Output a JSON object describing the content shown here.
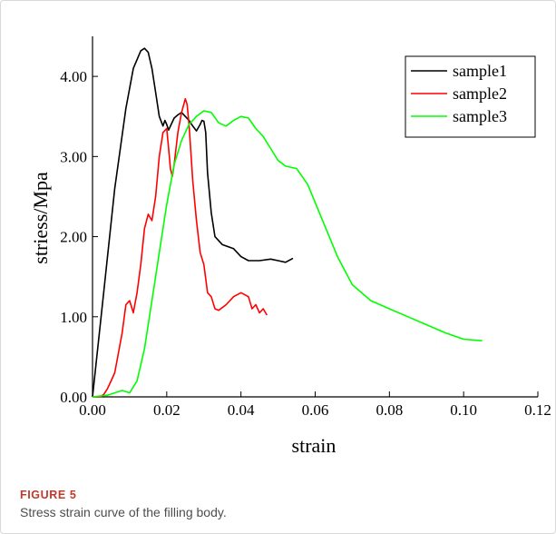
{
  "figure": {
    "label": "FIGURE 5",
    "caption": "Stress strain curve of the filling body."
  },
  "chart_data": {
    "type": "line",
    "xlabel": "strain",
    "ylabel": "striess/Mpa",
    "xlim": [
      0,
      0.12
    ],
    "ylim": [
      0,
      4.5
    ],
    "x_ticks": [
      0,
      0.02,
      0.04,
      0.06,
      0.08,
      0.1,
      0.12
    ],
    "x_tick_labels": [
      "0.00",
      "0.02",
      "0.04",
      "0.06",
      "0.08",
      "0.10",
      "0.12"
    ],
    "y_ticks": [
      0,
      1,
      2,
      3,
      4
    ],
    "y_tick_labels": [
      "0.00",
      "1.00",
      "2.00",
      "3.00",
      "4.00"
    ],
    "grid": false,
    "legend_position": "top-right",
    "series": [
      {
        "name": "sample1",
        "color": "#000000",
        "x": [
          0.0,
          0.003,
          0.006,
          0.009,
          0.011,
          0.013,
          0.014,
          0.015,
          0.016,
          0.017,
          0.018,
          0.019,
          0.0195,
          0.02,
          0.0205,
          0.021,
          0.022,
          0.023,
          0.024,
          0.025,
          0.026,
          0.027,
          0.028,
          0.029,
          0.0295,
          0.03,
          0.0305,
          0.031,
          0.032,
          0.033,
          0.035,
          0.038,
          0.04,
          0.042,
          0.045,
          0.048,
          0.05,
          0.052,
          0.054
        ],
        "y": [
          0.0,
          1.3,
          2.6,
          3.6,
          4.1,
          4.32,
          4.35,
          4.3,
          4.1,
          3.8,
          3.5,
          3.38,
          3.45,
          3.4,
          3.33,
          3.38,
          3.48,
          3.52,
          3.55,
          3.5,
          3.45,
          3.38,
          3.32,
          3.4,
          3.45,
          3.44,
          3.3,
          2.8,
          2.3,
          2.0,
          1.9,
          1.85,
          1.75,
          1.7,
          1.7,
          1.72,
          1.7,
          1.68,
          1.73
        ]
      },
      {
        "name": "sample2",
        "color": "#ff0000",
        "x": [
          0.0,
          0.002,
          0.003,
          0.004,
          0.005,
          0.006,
          0.007,
          0.008,
          0.009,
          0.01,
          0.011,
          0.012,
          0.013,
          0.014,
          0.015,
          0.016,
          0.017,
          0.018,
          0.019,
          0.02,
          0.0205,
          0.021,
          0.0215,
          0.022,
          0.023,
          0.024,
          0.025,
          0.0255,
          0.026,
          0.027,
          0.028,
          0.029,
          0.03,
          0.031,
          0.032,
          0.033,
          0.034,
          0.036,
          0.038,
          0.04,
          0.042,
          0.043,
          0.044,
          0.045,
          0.046,
          0.047
        ],
        "y": [
          0.0,
          0.0,
          0.03,
          0.1,
          0.2,
          0.3,
          0.55,
          0.8,
          1.15,
          1.2,
          1.05,
          1.3,
          1.65,
          2.1,
          2.28,
          2.2,
          2.5,
          3.0,
          3.3,
          3.35,
          3.1,
          2.85,
          2.75,
          2.9,
          3.3,
          3.55,
          3.72,
          3.65,
          3.4,
          2.7,
          2.2,
          1.8,
          1.65,
          1.3,
          1.25,
          1.1,
          1.08,
          1.15,
          1.25,
          1.3,
          1.25,
          1.1,
          1.15,
          1.05,
          1.1,
          1.02
        ]
      },
      {
        "name": "sample3",
        "color": "#00ff00",
        "x": [
          0.0,
          0.004,
          0.006,
          0.008,
          0.01,
          0.012,
          0.014,
          0.016,
          0.018,
          0.02,
          0.022,
          0.024,
          0.026,
          0.028,
          0.03,
          0.032,
          0.034,
          0.036,
          0.038,
          0.04,
          0.042,
          0.044,
          0.046,
          0.048,
          0.05,
          0.052,
          0.055,
          0.058,
          0.062,
          0.066,
          0.07,
          0.075,
          0.08,
          0.085,
          0.09,
          0.095,
          0.1,
          0.105
        ],
        "y": [
          0.0,
          0.02,
          0.05,
          0.08,
          0.05,
          0.2,
          0.6,
          1.2,
          1.8,
          2.4,
          2.9,
          3.2,
          3.4,
          3.5,
          3.57,
          3.55,
          3.42,
          3.38,
          3.45,
          3.5,
          3.48,
          3.35,
          3.25,
          3.1,
          2.95,
          2.88,
          2.85,
          2.65,
          2.2,
          1.75,
          1.4,
          1.2,
          1.1,
          1.0,
          0.9,
          0.8,
          0.72,
          0.7
        ]
      }
    ]
  }
}
